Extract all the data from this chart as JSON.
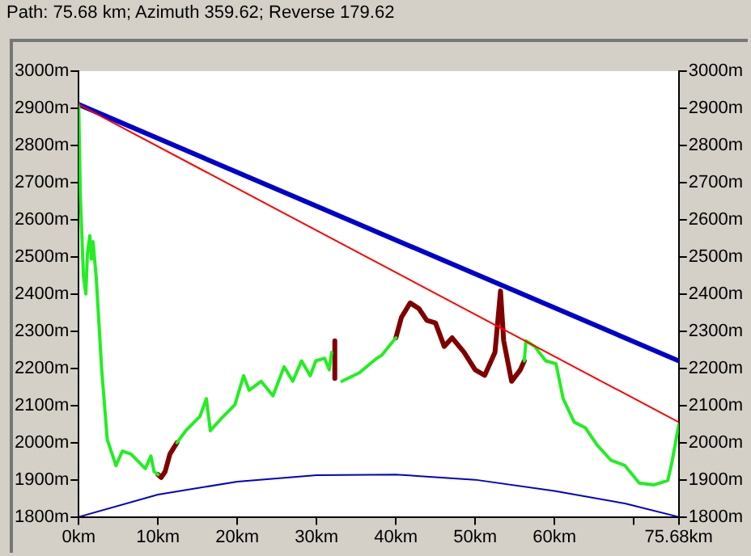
{
  "chart_data": {
    "type": "line",
    "title": "Path: 75.68 km; Azimuth 359.62; Reverse 179.62",
    "xlim": [
      0,
      75.68
    ],
    "xticks": [
      {
        "value": 0,
        "label": "0km"
      },
      {
        "value": 10,
        "label": "10km"
      },
      {
        "value": 20,
        "label": "20km"
      },
      {
        "value": 30,
        "label": "30km"
      },
      {
        "value": 40,
        "label": "40km"
      },
      {
        "value": 50,
        "label": "50km"
      },
      {
        "value": 60,
        "label": "60km"
      },
      {
        "value": 70,
        "label": null
      },
      {
        "value": 75.68,
        "label": "75.68km"
      }
    ],
    "ylim": [
      1800,
      3000
    ],
    "yticks": [
      {
        "value": 1800,
        "label": "1800m"
      },
      {
        "value": 1900,
        "label": "1900m"
      },
      {
        "value": 2000,
        "label": "2000m"
      },
      {
        "value": 2100,
        "label": "2100m"
      },
      {
        "value": 2200,
        "label": "2200m"
      },
      {
        "value": 2300,
        "label": "2300m"
      },
      {
        "value": 2400,
        "label": "2400m"
      },
      {
        "value": 2500,
        "label": "2500m"
      },
      {
        "value": 2600,
        "label": "2600m"
      },
      {
        "value": 2700,
        "label": "2700m"
      },
      {
        "value": 2800,
        "label": "2800m"
      },
      {
        "value": 2900,
        "label": "2900m"
      },
      {
        "value": 3000,
        "label": "3000m"
      }
    ],
    "y2lim": [
      1800,
      3000
    ],
    "y2ticks": [
      {
        "value": 1800,
        "label": "1800m"
      },
      {
        "value": 1900,
        "label": "1900m"
      },
      {
        "value": 2000,
        "label": "2000m"
      },
      {
        "value": 2100,
        "label": "2100m"
      },
      {
        "value": 2200,
        "label": "2200m"
      },
      {
        "value": 2300,
        "label": "2300m"
      },
      {
        "value": 2400,
        "label": "2400m"
      },
      {
        "value": 2500,
        "label": "2500m"
      },
      {
        "value": 2600,
        "label": "2600m"
      },
      {
        "value": 2700,
        "label": "2700m"
      },
      {
        "value": 2800,
        "label": "2800m"
      },
      {
        "value": 2900,
        "label": "2900m"
      },
      {
        "value": 3000,
        "label": "3000m"
      }
    ],
    "grid": false,
    "legend": false,
    "marker": "none",
    "line_style": "solid",
    "series": [
      {
        "color": "#22ee22",
        "x": [
          0,
          0.2,
          0.6,
          0.9,
          1.1,
          1.4,
          1.6,
          1.8,
          2.2,
          2.9,
          3.6,
          4.7,
          5.5,
          6.6,
          7.7,
          8.4,
          9.1,
          9.5,
          10.0,
          11,
          12.4,
          13.5,
          15.3,
          16.1,
          16.6,
          17.9,
          19.7,
          20.8,
          21.5,
          23.0,
          24.5,
          25.9,
          27.0,
          28.1,
          29.2,
          29.9,
          31.0,
          31.6,
          31.9,
          32.2,
          33.2,
          35.4,
          37.6,
          38.2,
          40.0,
          48,
          56.2,
          56.4,
          57.5,
          58.9,
          60.2,
          61.1,
          62.5,
          63.9,
          65.4,
          67.1,
          68.9,
          70.7,
          72.5,
          74.3,
          74.8,
          75.68
        ],
        "values": [
          2909,
          2666,
          2447,
          2400,
          2510,
          2557,
          2494,
          2541,
          2447,
          2196,
          2008,
          1938,
          1977,
          1969,
          1945,
          1930,
          1964,
          1922,
          1914,
          null,
          2000,
          2032,
          2071,
          2118,
          2032,
          2063,
          2102,
          2180,
          2141,
          2165,
          2126,
          2204,
          2165,
          2220,
          2180,
          2220,
          2227,
          2196,
          2243,
          null,
          2165,
          2188,
          2227,
          2235,
          2282,
          null,
          2220,
          2274,
          2259,
          2220,
          2212,
          2118,
          2055,
          2040,
          1993,
          1953,
          1938,
          1891,
          1886,
          1898,
          1945,
          2048
        ]
      },
      {
        "color": "#800000",
        "x": [
          10.0,
          10.4,
          10.9,
          11.5,
          12.4,
          20,
          32.3,
          32.3,
          36,
          40.0,
          40.7,
          41.8,
          42.9,
          43.9,
          45.0,
          46.1,
          47.1,
          48.6,
          50.0,
          51.2,
          52.5,
          53.2,
          53.6,
          54.6,
          55.7,
          56.2
        ],
        "values": [
          1914,
          1906,
          1922,
          1969,
          2000,
          null,
          2274,
          2173,
          null,
          2282,
          2337,
          2376,
          2361,
          2329,
          2322,
          2259,
          2282,
          2243,
          2196,
          2181,
          2243,
          2408,
          2274,
          2165,
          2196,
          2220
        ]
      },
      {
        "color": "#0000cc",
        "x": [
          0,
          75.68
        ],
        "values": [
          2910,
          2220
        ]
      },
      {
        "color": "#ff0000",
        "x": [
          0,
          75.68
        ],
        "values": [
          2910,
          2055
        ]
      },
      {
        "color": "#0000cc",
        "x": [
          0,
          10,
          20,
          30,
          40,
          50,
          60,
          68.9,
          75.68
        ],
        "values": [
          1800,
          1860,
          1895,
          1912,
          1914,
          1900,
          1870,
          1836,
          1800
        ]
      }
    ]
  }
}
